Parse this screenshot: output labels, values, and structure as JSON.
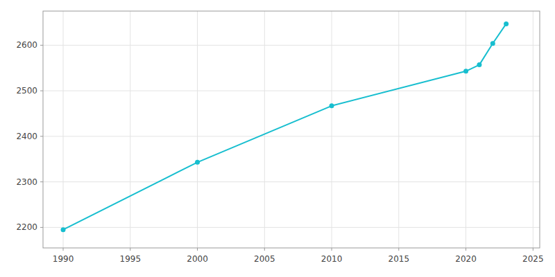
{
  "chart_data": {
    "type": "line",
    "x": [
      1990,
      2000,
      2010,
      2020,
      2021,
      2022,
      2023
    ],
    "values": [
      2195,
      2343,
      2467,
      2543,
      2557,
      2604,
      2647
    ],
    "color": "#17BECF",
    "marker": "circle",
    "xlim": [
      1988.5,
      2025.5
    ],
    "ylim": [
      2155,
      2675
    ],
    "xticks": [
      1990,
      1995,
      2000,
      2005,
      2010,
      2015,
      2020,
      2025
    ],
    "yticks": [
      2200,
      2300,
      2400,
      2500,
      2600
    ],
    "grid": true
  }
}
